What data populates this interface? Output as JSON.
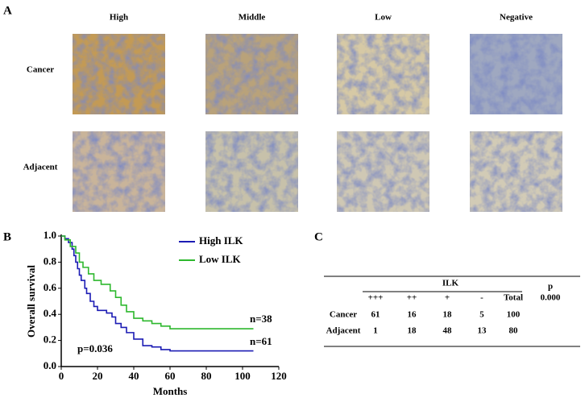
{
  "panel_labels": [
    "A",
    "B",
    "C"
  ],
  "panel_a": {
    "columns": [
      "High",
      "Middle",
      "Low",
      "Negative"
    ],
    "rows": [
      "Cancer",
      "Adjacent"
    ]
  },
  "chart_data": {
    "type": "line",
    "xlabel": "Months",
    "ylabel": "Overall survival",
    "xlim": [
      0,
      120
    ],
    "xticks": [
      0,
      20,
      40,
      60,
      80,
      100,
      120
    ],
    "ylim": [
      0,
      1
    ],
    "yticks": [
      {
        "value": 0,
        "label": "0.0"
      },
      {
        "value": 0.2,
        "label": "0.2"
      },
      {
        "value": 0.4,
        "label": "0.4"
      },
      {
        "value": 0.6,
        "label": "0.6"
      },
      {
        "value": 0.8,
        "label": "0.8"
      },
      {
        "value": 1,
        "label": "1.0"
      }
    ],
    "series": [
      {
        "name": "High ILK",
        "color": "#1c1cb4",
        "x": [
          0,
          2,
          4,
          6,
          7,
          8,
          9,
          10,
          11,
          13,
          14,
          16,
          18,
          20,
          25,
          28,
          30,
          33,
          36,
          40,
          45,
          50,
          55,
          60,
          106
        ],
        "values": [
          1,
          0.98,
          0.95,
          0.9,
          0.85,
          0.8,
          0.75,
          0.7,
          0.66,
          0.6,
          0.56,
          0.5,
          0.46,
          0.43,
          0.41,
          0.38,
          0.33,
          0.3,
          0.26,
          0.21,
          0.16,
          0.15,
          0.13,
          0.12,
          0.12
        ]
      },
      {
        "name": "Low ILK",
        "color": "#2eb82e",
        "x": [
          0,
          2,
          5,
          8,
          10,
          12,
          15,
          18,
          22,
          27,
          30,
          33,
          36,
          40,
          45,
          50,
          55,
          60,
          106
        ],
        "values": [
          1,
          0.97,
          0.92,
          0.87,
          0.8,
          0.76,
          0.71,
          0.66,
          0.63,
          0.58,
          0.53,
          0.47,
          0.42,
          0.37,
          0.35,
          0.33,
          0.31,
          0.29,
          0.29
        ]
      }
    ],
    "annotations": [
      "n=38",
      "n=61",
      "p=0.036"
    ]
  },
  "table": {
    "group_header": "ILK",
    "p_header": "p",
    "p_value": "0.000",
    "columns": [
      "+++",
      "++",
      "+",
      "-",
      "Total"
    ],
    "rows": [
      {
        "label": "Cancer",
        "values": [
          61,
          16,
          18,
          5,
          100
        ]
      },
      {
        "label": "Adjacent",
        "values": [
          1,
          18,
          48,
          13,
          80
        ]
      }
    ]
  }
}
